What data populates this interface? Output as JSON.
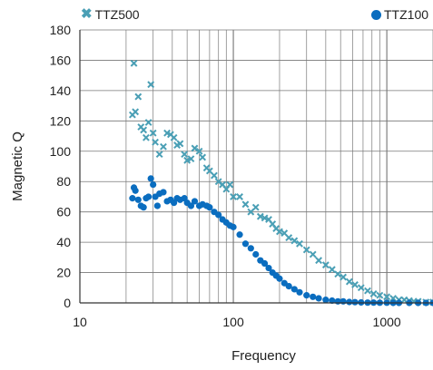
{
  "chart_data": {
    "type": "scatter",
    "xscale": "log",
    "xlim": [
      10,
      2000
    ],
    "ylim": [
      0,
      180
    ],
    "xlabel": "Frequency",
    "ylabel": "Magnetic Q",
    "xticks": [
      "10",
      "100",
      "1000"
    ],
    "yticks": [
      "0",
      "20",
      "40",
      "60",
      "80",
      "100",
      "120",
      "140",
      "160",
      "180"
    ],
    "grid": true,
    "legend_position": "top",
    "series": [
      {
        "name": "TTZ500",
        "marker": "x",
        "color": "#4a9fb5",
        "x": [
          22,
          22.5,
          23,
          24,
          25,
          26,
          27,
          28,
          29,
          30,
          31,
          33,
          35,
          37,
          39,
          41,
          43,
          45,
          48,
          50,
          53,
          56,
          60,
          63,
          67,
          70,
          75,
          80,
          85,
          90,
          95,
          100,
          110,
          120,
          130,
          140,
          150,
          160,
          170,
          180,
          190,
          200,
          215,
          230,
          250,
          270,
          300,
          330,
          360,
          400,
          440,
          480,
          520,
          570,
          620,
          680,
          750,
          820,
          900,
          1000,
          1100,
          1200,
          1300,
          1400,
          1500,
          1600,
          1800,
          2000
        ],
        "y": [
          124,
          158,
          126,
          136,
          116,
          114,
          109,
          119,
          144,
          112,
          106,
          98,
          103,
          112,
          111,
          109,
          104,
          105,
          98,
          94,
          95,
          102,
          100,
          96,
          89,
          87,
          84,
          80,
          78,
          75,
          78,
          70,
          70,
          65,
          60,
          63,
          57,
          56,
          55,
          52,
          49,
          47,
          46,
          43,
          41,
          39,
          35,
          32,
          28,
          25,
          22,
          19,
          17,
          14,
          12,
          10,
          8,
          6,
          5,
          4,
          3,
          2,
          2,
          1.5,
          1,
          1,
          0.5,
          0.5
        ]
      },
      {
        "name": "TTZ100",
        "marker": "o",
        "color": "#0a6dbf",
        "x": [
          22,
          22.5,
          23,
          24,
          25,
          26,
          27,
          28,
          29,
          30,
          31,
          32,
          33,
          35,
          37,
          39,
          41,
          43,
          45,
          48,
          50,
          53,
          56,
          60,
          63,
          67,
          70,
          75,
          80,
          85,
          90,
          95,
          100,
          110,
          120,
          130,
          140,
          150,
          160,
          170,
          180,
          190,
          200,
          215,
          230,
          250,
          270,
          300,
          330,
          360,
          400,
          440,
          480,
          520,
          570,
          620,
          680,
          750,
          820,
          900,
          1000,
          1100,
          1200,
          1400,
          1600,
          1800,
          2000
        ],
        "y": [
          69,
          76,
          74,
          68,
          64,
          63,
          69,
          70,
          82,
          78,
          70,
          64,
          72,
          73,
          67,
          68,
          66,
          69,
          68,
          69,
          66,
          64,
          67,
          64,
          65,
          64,
          63,
          60,
          58,
          55,
          53,
          51,
          50,
          45,
          39,
          36,
          32,
          28,
          26,
          23,
          20,
          18,
          16,
          13,
          11,
          9,
          7,
          5,
          4,
          3,
          2,
          1.5,
          1,
          1,
          0.6,
          0.5,
          0.3,
          0.2,
          0.2,
          0.1,
          0.1,
          0,
          0,
          0,
          0,
          0,
          0
        ]
      }
    ]
  }
}
